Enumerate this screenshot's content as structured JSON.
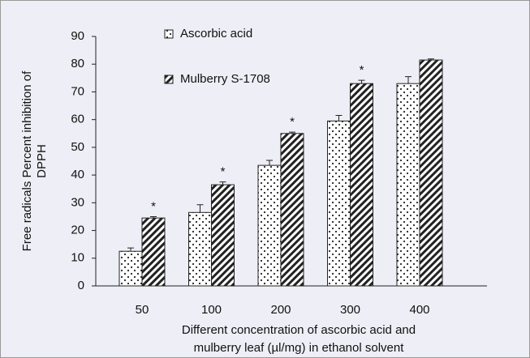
{
  "chart_data": {
    "type": "bar",
    "categories": [
      "50",
      "100",
      "200",
      "300",
      "400"
    ],
    "series": [
      {
        "name": "Ascorbic acid",
        "color": "#222222",
        "pattern": "dots",
        "values": [
          12.5,
          26.5,
          43.5,
          59.5,
          73
        ],
        "errors": [
          1.2,
          2.8,
          1.8,
          2,
          2.5
        ],
        "markers": [
          null,
          null,
          null,
          null,
          null
        ]
      },
      {
        "name": "Mulberry S-1708",
        "color": "#222222",
        "pattern": "hatch",
        "values": [
          24.5,
          36.5,
          55,
          73,
          81.5
        ],
        "errors": [
          0.5,
          1,
          0.5,
          1.2,
          0.4
        ],
        "markers": [
          "*",
          "*",
          "*",
          "*",
          null
        ]
      }
    ],
    "ylabel": [
      "Free radicals Percent inhibition of",
      "DPPH"
    ],
    "xlabel": [
      "Different concentration  of ascorbic acid and",
      "mulberry leaf (µl/mg) in ethanol solvent"
    ],
    "ylim": [
      0,
      90
    ],
    "yticks": [
      0,
      10,
      20,
      30,
      40,
      50,
      60,
      70,
      80,
      90
    ],
    "grid": false
  }
}
